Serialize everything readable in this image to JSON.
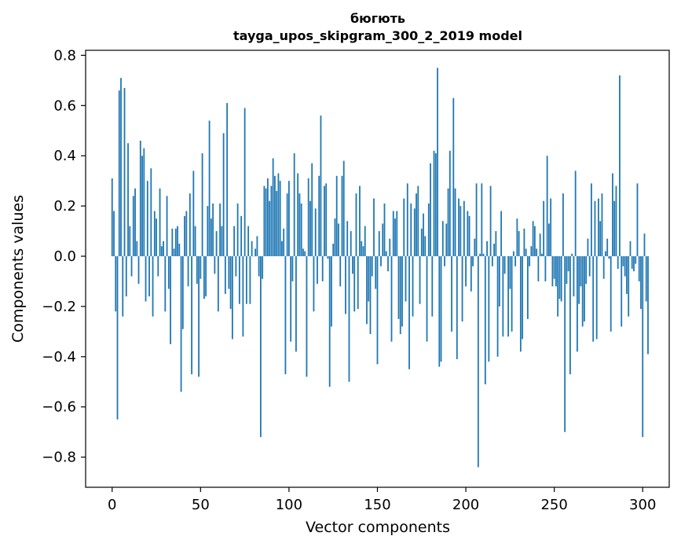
{
  "chart_data": {
    "type": "bar",
    "title_line1": "бюгють",
    "title_line2": "tayga_upos_skipgram_300_2_2019 model",
    "xlabel": "Vector components",
    "ylabel": "Components values",
    "xlim": [
      -15,
      315
    ],
    "ylim": [
      -0.92,
      0.82
    ],
    "xticks": [
      0,
      50,
      100,
      150,
      200,
      250,
      300
    ],
    "yticks": [
      -0.8,
      -0.6,
      -0.4,
      -0.2,
      0.0,
      0.2,
      0.4,
      0.6,
      0.8
    ],
    "ytick_labels": [
      "−0.8",
      "−0.6",
      "−0.4",
      "−0.2",
      "0.0",
      "0.2",
      "0.4",
      "0.6",
      "0.8"
    ],
    "bar_color": "#1f77b4",
    "grid": false,
    "values": [
      0.31,
      0.18,
      -0.22,
      -0.65,
      0.66,
      0.71,
      -0.24,
      0.67,
      -0.16,
      0.45,
      0.12,
      -0.08,
      0.24,
      0.27,
      0.06,
      -0.11,
      0.46,
      0.4,
      0.43,
      -0.18,
      0.3,
      -0.16,
      0.35,
      -0.24,
      0.18,
      0.15,
      -0.08,
      0.27,
      0.04,
      0.06,
      -0.22,
      0.24,
      -0.13,
      -0.35,
      0.11,
      0.03,
      0.11,
      0.12,
      0.05,
      -0.54,
      -0.29,
      0.16,
      0.18,
      -0.12,
      0.25,
      -0.47,
      0.34,
      0.12,
      -0.11,
      -0.48,
      -0.09,
      0.41,
      -0.17,
      -0.16,
      0.2,
      0.54,
      0.15,
      0.21,
      -0.07,
      0.1,
      -0.22,
      0.21,
      0.12,
      0.49,
      -0.15,
      0.61,
      -0.13,
      -0.21,
      -0.33,
      0.12,
      -0.08,
      0.21,
      -0.19,
      0.16,
      -0.32,
      0.59,
      -0.19,
      0.12,
      -0.19,
      0.06,
      0.0,
      0.03,
      0.08,
      -0.08,
      -0.72,
      -0.09,
      0.28,
      0.27,
      0.31,
      0.22,
      0.28,
      0.39,
      0.32,
      0.26,
      0.33,
      0.3,
      0.06,
      0.11,
      -0.47,
      0.25,
      0.3,
      -0.34,
      -0.1,
      0.41,
      -0.38,
      0.33,
      0.25,
      0.21,
      0.03,
      0.02,
      -0.48,
      0.31,
      0.22,
      0.37,
      -0.22,
      0.19,
      -0.11,
      0.32,
      0.56,
      -0.1,
      0.28,
      0.29,
      -0.01,
      -0.52,
      -0.28,
      0.05,
      0.15,
      0.32,
      0.13,
      -0.12,
      0.32,
      0.38,
      -0.23,
      0.14,
      -0.5,
      0.1,
      -0.07,
      -0.22,
      0.25,
      -0.21,
      0.28,
      0.06,
      0.04,
      0.12,
      -0.27,
      -0.18,
      -0.31,
      -0.08,
      0.23,
      -0.13,
      -0.43,
      0.1,
      -0.04,
      0.13,
      0.21,
      0.02,
      -0.06,
      0.07,
      -0.34,
      0.18,
      0.15,
      0.18,
      -0.25,
      -0.31,
      -0.28,
      0.23,
      -0.18,
      0.29,
      -0.45,
      0.21,
      -0.24,
      0.19,
      0.25,
      0.28,
      -0.19,
      0.11,
      0.17,
      0.08,
      -0.34,
      0.21,
      0.37,
      -0.24,
      0.42,
      0.41,
      0.75,
      -0.44,
      -0.42,
      0.14,
      -0.04,
      0.13,
      0.27,
      0.42,
      -0.3,
      0.63,
      0.27,
      -0.41,
      0.23,
      0.2,
      -0.26,
      0.22,
      -0.12,
      0.18,
      0.16,
      -0.14,
      -0.04,
      0.07,
      0.29,
      -0.84,
      0.01,
      0.29,
      0.01,
      -0.51,
      0.06,
      -0.42,
      0.28,
      -0.04,
      0.05,
      0.1,
      -0.4,
      -0.2,
      0.18,
      -0.32,
      -0.07,
      0.0,
      -0.32,
      -0.13,
      -0.3,
      0.02,
      -0.04,
      0.15,
      0.1,
      -0.38,
      -0.33,
      0.11,
      0.03,
      -0.25,
      -0.04,
      0.04,
      0.14,
      0.12,
      0.03,
      -0.1,
      0.09,
      0.01,
      0.22,
      -0.1,
      0.4,
      0.13,
      0.23,
      -0.12,
      -0.09,
      -0.12,
      -0.24,
      -0.17,
      -0.18,
      0.25,
      -0.7,
      -0.11,
      -0.06,
      -0.47,
      0.01,
      -0.16,
      0.34,
      -0.38,
      -0.19,
      -0.12,
      -0.28,
      -0.26,
      -0.11,
      0.07,
      -0.08,
      0.29,
      -0.34,
      0.22,
      -0.33,
      0.23,
      0.14,
      0.25,
      -0.09,
      0.02,
      0.07,
      -0.01,
      -0.3,
      0.33,
      0.22,
      0.28,
      -0.05,
      0.72,
      -0.28,
      -0.04,
      -0.08,
      -0.15,
      -0.24,
      0.06,
      -0.05,
      -0.06,
      -0.03,
      0.29,
      -0.1,
      -0.21,
      -0.72,
      0.09,
      -0.18,
      -0.39
    ]
  }
}
